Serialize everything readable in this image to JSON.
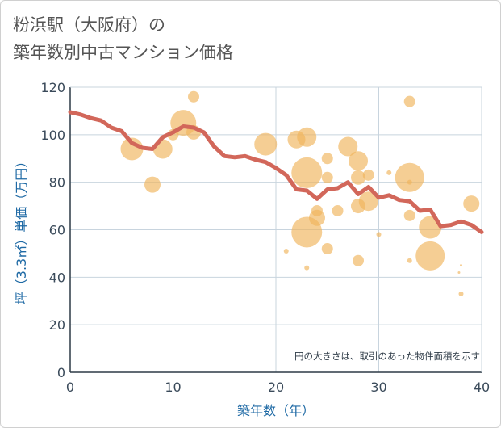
{
  "title_line1": "粉浜駅（大阪府）の",
  "title_line2": "築年数別中古マンション価格",
  "colors": {
    "line": "#d2675a",
    "bubble": "#f0b45a",
    "bubble_alpha": 0.65,
    "grid": "#c8d4de",
    "axis_text": "#3a4a5a",
    "axis_label": "#1f6aa5"
  },
  "chart_data": {
    "type": "scatter",
    "xlabel": "築年数（年）",
    "ylabel": "坪（3.3㎡）単価（万円）",
    "xlim": [
      0,
      40
    ],
    "ylim": [
      0,
      120
    ],
    "xticks": [
      "0",
      "10",
      "20",
      "30",
      "40"
    ],
    "yticks": [
      "0",
      "20",
      "40",
      "60",
      "80",
      "100",
      "120"
    ],
    "grid": true,
    "note": "円の大きさは、取引のあった物件面積を示す",
    "series": [
      {
        "type": "line",
        "x": [
          0,
          1,
          2,
          3,
          4,
          5,
          6,
          7,
          8,
          9,
          10,
          11,
          12,
          13,
          14,
          15,
          16,
          17,
          18,
          19,
          20,
          21,
          22,
          23,
          24,
          25,
          26,
          27,
          28,
          29,
          30,
          31,
          32,
          33,
          34,
          35,
          36,
          37,
          38,
          39,
          40
        ],
        "values": [
          109.5,
          108.5,
          107,
          106,
          103,
          101.5,
          96.5,
          94.5,
          94,
          99,
          101,
          103.5,
          103,
          101,
          95,
          91,
          90.5,
          91,
          89.5,
          88.5,
          86,
          83,
          77,
          76.5,
          73,
          77,
          77.5,
          80,
          75,
          78,
          73.5,
          74.5,
          72.5,
          72,
          68,
          68.5,
          61.5,
          62,
          63.5,
          62,
          59
        ]
      },
      {
        "type": "bubble",
        "points": [
          {
            "x": 6,
            "y": 94,
            "s": 14
          },
          {
            "x": 8,
            "y": 79,
            "s": 10
          },
          {
            "x": 9,
            "y": 94,
            "s": 12
          },
          {
            "x": 10,
            "y": 100,
            "s": 7
          },
          {
            "x": 11,
            "y": 105,
            "s": 16
          },
          {
            "x": 12,
            "y": 101,
            "s": 9
          },
          {
            "x": 12,
            "y": 116,
            "s": 7
          },
          {
            "x": 19,
            "y": 96,
            "s": 14
          },
          {
            "x": 21,
            "y": 51,
            "s": 3
          },
          {
            "x": 22,
            "y": 98,
            "s": 11
          },
          {
            "x": 23,
            "y": 99,
            "s": 12
          },
          {
            "x": 23,
            "y": 84,
            "s": 19
          },
          {
            "x": 23,
            "y": 59,
            "s": 19
          },
          {
            "x": 23,
            "y": 44,
            "s": 3
          },
          {
            "x": 24,
            "y": 68,
            "s": 7
          },
          {
            "x": 24,
            "y": 65,
            "s": 10
          },
          {
            "x": 25,
            "y": 90,
            "s": 7
          },
          {
            "x": 25,
            "y": 82,
            "s": 7
          },
          {
            "x": 25,
            "y": 52,
            "s": 7
          },
          {
            "x": 26,
            "y": 68,
            "s": 7
          },
          {
            "x": 27,
            "y": 95,
            "s": 12
          },
          {
            "x": 28,
            "y": 89,
            "s": 12
          },
          {
            "x": 28,
            "y": 82,
            "s": 9
          },
          {
            "x": 28,
            "y": 70,
            "s": 9
          },
          {
            "x": 28,
            "y": 47,
            "s": 7
          },
          {
            "x": 29,
            "y": 83,
            "s": 7
          },
          {
            "x": 29,
            "y": 72,
            "s": 12
          },
          {
            "x": 30,
            "y": 58,
            "s": 3
          },
          {
            "x": 31,
            "y": 84,
            "s": 3
          },
          {
            "x": 33,
            "y": 114,
            "s": 7
          },
          {
            "x": 33,
            "y": 82,
            "s": 18
          },
          {
            "x": 33,
            "y": 80,
            "s": 3
          },
          {
            "x": 33,
            "y": 66,
            "s": 7
          },
          {
            "x": 33,
            "y": 47,
            "s": 3
          },
          {
            "x": 35,
            "y": 61,
            "s": 14
          },
          {
            "x": 35,
            "y": 49,
            "s": 18
          },
          {
            "x": 37.8,
            "y": 42,
            "s": 1.5
          },
          {
            "x": 38,
            "y": 45,
            "s": 1.5
          },
          {
            "x": 38,
            "y": 33,
            "s": 3
          },
          {
            "x": 39,
            "y": 71,
            "s": 10
          }
        ]
      }
    ]
  }
}
